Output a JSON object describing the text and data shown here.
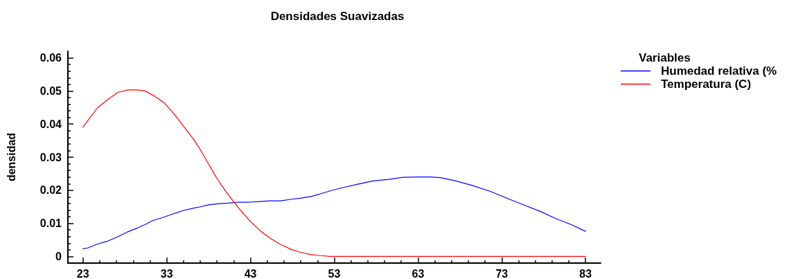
{
  "chart_data": {
    "type": "line",
    "title": "Densidades Suavizadas",
    "ylabel": "densidad",
    "legend_title": "Variables",
    "legend": "top right",
    "marker": "none",
    "line_style": "solid",
    "series": [
      {
        "name": "Humedad relativa (%",
        "color": "#0000ff",
        "x": [
          23,
          23.6,
          24.7,
          25.9,
          27.2,
          28.4,
          29.5,
          30.4,
          31.3,
          32.7,
          33.8,
          35.0,
          36.2,
          37.0,
          38.0,
          39.1,
          40.3,
          41.6,
          42.9,
          44.1,
          45.3,
          46.6,
          47.9,
          48.9,
          50.2,
          51.2,
          52.5,
          54.0,
          55.6,
          57.6,
          59.5,
          61.2,
          63.1,
          64.5,
          65.7,
          67.5,
          69.4,
          71.6,
          73.8,
          76.1,
          77.7,
          79.4,
          81.3,
          83
        ],
        "values": [
          0.0023,
          0.0026,
          0.0037,
          0.0046,
          0.006,
          0.0075,
          0.0086,
          0.0096,
          0.0108,
          0.0119,
          0.0129,
          0.0139,
          0.0146,
          0.015,
          0.0156,
          0.0159,
          0.0161,
          0.0164,
          0.0164,
          0.0166,
          0.0168,
          0.0168,
          0.0173,
          0.0176,
          0.0181,
          0.0188,
          0.0198,
          0.0208,
          0.0217,
          0.0228,
          0.0233,
          0.0239,
          0.024,
          0.024,
          0.0238,
          0.0228,
          0.0215,
          0.0197,
          0.0174,
          0.0151,
          0.0135,
          0.0115,
          0.0096,
          0.0076
        ]
      },
      {
        "name": "Temperatura (C)",
        "color": "#ff0000",
        "x": [
          23,
          23.6,
          24.7,
          25.9,
          27.2,
          28.4,
          29.5,
          30.4,
          31.3,
          32.7,
          33.8,
          35.0,
          36.2,
          37.0,
          38.0,
          39.1,
          40.3,
          41.6,
          42.9,
          44.1,
          45.3,
          46.6,
          47.9,
          48.9,
          50.2,
          51.2,
          52.5,
          83
        ],
        "values": [
          0.039,
          0.0411,
          0.0448,
          0.0473,
          0.0496,
          0.0503,
          0.0503,
          0.05,
          0.0488,
          0.0464,
          0.0433,
          0.0394,
          0.0354,
          0.0323,
          0.0279,
          0.0231,
          0.0188,
          0.0146,
          0.0108,
          0.0079,
          0.0056,
          0.0036,
          0.0021,
          0.0013,
          0.0006,
          0.0003,
          0,
          0
        ]
      }
    ],
    "xlim": [
      21.2,
      84.8
    ],
    "xticks": [
      23,
      {
        "value": 25,
        "label": null
      },
      {
        "value": 27,
        "label": null
      },
      {
        "value": 29,
        "label": null
      },
      {
        "value": 31,
        "label": null
      },
      33,
      {
        "value": 35,
        "label": null
      },
      {
        "value": 37,
        "label": null
      },
      {
        "value": 39,
        "label": null
      },
      {
        "value": 41,
        "label": null
      },
      43,
      {
        "value": 45,
        "label": null
      },
      {
        "value": 47,
        "label": null
      },
      {
        "value": 49,
        "label": null
      },
      {
        "value": 51,
        "label": null
      },
      53,
      {
        "value": 55,
        "label": null
      },
      {
        "value": 57,
        "label": null
      },
      {
        "value": 59,
        "label": null
      },
      {
        "value": 61,
        "label": null
      },
      63,
      {
        "value": 65,
        "label": null
      },
      {
        "value": 67,
        "label": null
      },
      {
        "value": 69,
        "label": null
      },
      {
        "value": 71,
        "label": null
      },
      73,
      {
        "value": 75,
        "label": null
      },
      {
        "value": 77,
        "label": null
      },
      {
        "value": 79,
        "label": null
      },
      {
        "value": 81,
        "label": null
      },
      83
    ],
    "ylim": [
      -0.002,
      0.062
    ],
    "yticks": [
      0,
      {
        "value": 0.002,
        "label": null
      },
      {
        "value": 0.004,
        "label": null
      },
      {
        "value": 0.006,
        "label": null
      },
      {
        "value": 0.008,
        "label": null
      },
      0.01,
      {
        "value": 0.012,
        "label": null
      },
      {
        "value": 0.014,
        "label": null
      },
      {
        "value": 0.016,
        "label": null
      },
      {
        "value": 0.018,
        "label": null
      },
      0.02,
      {
        "value": 0.022,
        "label": null
      },
      {
        "value": 0.024,
        "label": null
      },
      {
        "value": 0.026,
        "label": null
      },
      {
        "value": 0.028,
        "label": null
      },
      0.03,
      {
        "value": 0.032,
        "label": null
      },
      {
        "value": 0.034,
        "label": null
      },
      {
        "value": 0.036,
        "label": null
      },
      {
        "value": 0.038,
        "label": null
      },
      0.04,
      {
        "value": 0.042,
        "label": null
      },
      {
        "value": 0.044,
        "label": null
      },
      {
        "value": 0.046,
        "label": null
      },
      {
        "value": 0.048,
        "label": null
      },
      0.05,
      {
        "value": 0.052,
        "label": null
      },
      {
        "value": 0.054,
        "label": null
      },
      {
        "value": 0.056,
        "label": null
      },
      {
        "value": 0.058,
        "label": null
      },
      0.06
    ]
  }
}
